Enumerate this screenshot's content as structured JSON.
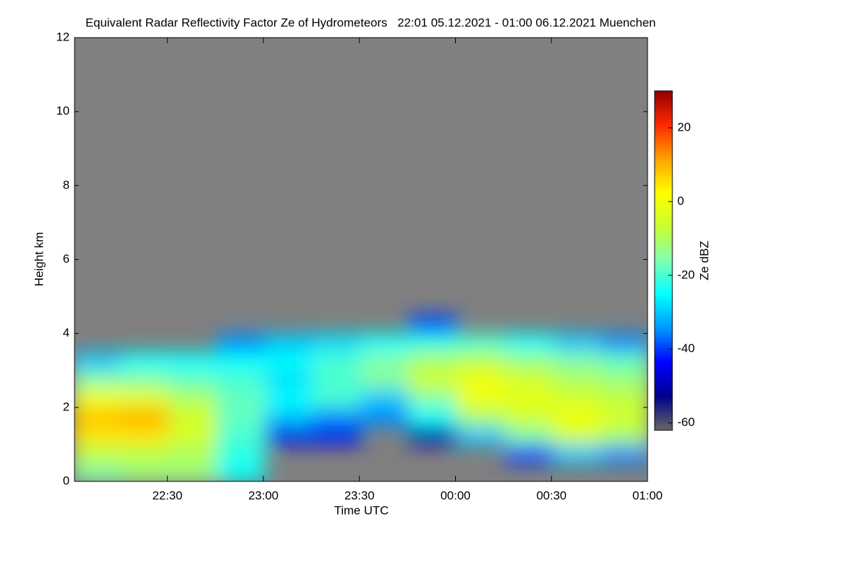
{
  "chart_data": {
    "type": "heatmap",
    "title": "Equivalent Radar Reflectivity Factor Ze of Hydrometeors   22:01 05.12.2021 - 01:00 06.12.2021 Muenchen",
    "x_label": "Time UTC",
    "y_label": "Height km",
    "colorbar_label": "Ze dBZ",
    "xlim": [
      1,
      180
    ],
    "xticks": [
      {
        "value": 30,
        "label": "22:30"
      },
      {
        "value": 60,
        "label": "23:00"
      },
      {
        "value": 90,
        "label": "23:30"
      },
      {
        "value": 120,
        "label": "00:00"
      },
      {
        "value": 150,
        "label": "00:30"
      },
      {
        "value": 180,
        "label": "01:00"
      }
    ],
    "ylim": [
      0,
      12
    ],
    "yticks": [
      0,
      2,
      4,
      6,
      8,
      10,
      12
    ],
    "clim": [
      -62,
      30
    ],
    "cticks": [
      -60,
      -40,
      -20,
      0,
      20
    ],
    "background_color": "#808080",
    "colormap": [
      "#666666",
      "#00008c",
      "#0000ff",
      "#0096ff",
      "#00ffff",
      "#7fffb0",
      "#c8ff30",
      "#ffff00",
      "#ffa000",
      "#ff2800",
      "#900000"
    ],
    "x": [
      8,
      23,
      38,
      53,
      68,
      83,
      98,
      113,
      128,
      143,
      158,
      173
    ],
    "y": [
      0.25,
      0.75,
      1.25,
      1.75,
      2.25,
      2.75,
      3.25,
      3.75,
      4.25
    ],
    "z": [
      [
        -15,
        -12,
        -12,
        -25,
        null,
        null,
        null,
        null,
        null,
        null,
        null,
        null
      ],
      [
        -8,
        -8,
        -10,
        -22,
        null,
        null,
        null,
        null,
        null,
        -40,
        -30,
        -35
      ],
      [
        5,
        5,
        -5,
        -20,
        -45,
        -45,
        null,
        -50,
        -30,
        -15,
        -5,
        -10
      ],
      [
        8,
        10,
        -5,
        -18,
        -30,
        -35,
        -35,
        -25,
        -10,
        -5,
        0,
        -5
      ],
      [
        0,
        -2,
        -10,
        -18,
        -25,
        -20,
        -30,
        -15,
        0,
        -2,
        -5,
        -8
      ],
      [
        -15,
        -15,
        -18,
        -20,
        -28,
        -20,
        -15,
        -5,
        0,
        -5,
        -10,
        -12
      ],
      [
        -30,
        -25,
        -25,
        -25,
        -25,
        -20,
        -15,
        -10,
        -8,
        -12,
        -15,
        -18
      ],
      [
        null,
        null,
        null,
        -35,
        -30,
        -28,
        -25,
        -22,
        -20,
        -25,
        -30,
        -35
      ],
      [
        null,
        null,
        null,
        null,
        null,
        null,
        null,
        -40,
        null,
        null,
        null,
        null
      ]
    ]
  }
}
